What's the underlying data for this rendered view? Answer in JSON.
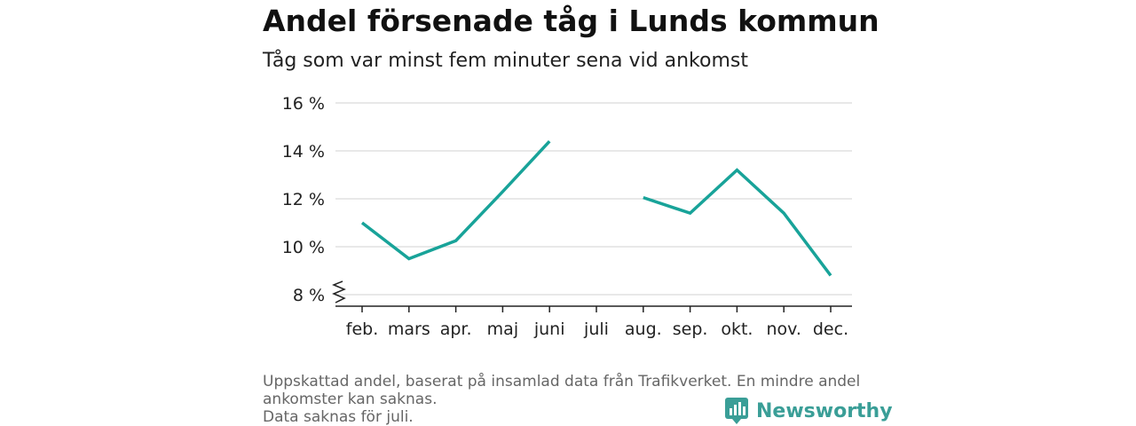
{
  "title": "Andel försenade tåg i Lunds kommun",
  "subtitle": "Tåg som var minst fem minuter sena vid ankomst",
  "footnote": {
    "line1": "Uppskattad andel, baserat på insamlad data från Trafikverket. En mindre andel ankomster kan saknas.",
    "line2": "Data saknas för juli."
  },
  "brand": {
    "name": "Newsworthy",
    "icon": "newsworthy-logo-icon",
    "color": "#3a9e97"
  },
  "colors": {
    "line": "#18a399",
    "grid": "#d9d9d9",
    "axis": "#222222"
  },
  "chart_data": {
    "type": "line",
    "title": "Andel försenade tåg i Lunds kommun",
    "subtitle": "Tåg som var minst fem minuter sena vid ankomst",
    "categories": [
      "feb.",
      "mars",
      "apr.",
      "maj",
      "juni",
      "juli",
      "aug.",
      "sep.",
      "okt.",
      "nov.",
      "dec."
    ],
    "series": [
      {
        "values": [
          11.0,
          9.5,
          10.25,
          12.3,
          14.4,
          null,
          12.05,
          11.4,
          13.2,
          11.4,
          8.8
        ]
      }
    ],
    "yticks": [
      8,
      10,
      12,
      14,
      16
    ],
    "ytick_labels": [
      "8 %",
      "10 %",
      "12 %",
      "14 %",
      "16 %"
    ],
    "ylim": [
      8,
      16
    ],
    "y_axis_break": true,
    "grid": "horizontal",
    "legend": "none"
  }
}
